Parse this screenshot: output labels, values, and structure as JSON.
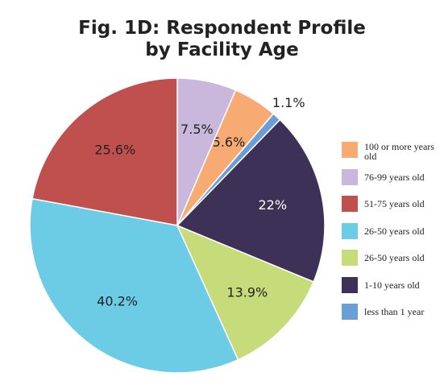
{
  "chart_data": {
    "type": "pie",
    "title": "Fig. 1D: Respondent Profile\nby Facility Age",
    "categories": [
      "100 or more years old",
      "76-99 years old",
      "51-75 years old",
      "26-50 years old",
      "26-50 years old",
      "1-10 years old",
      "less than 1 year"
    ],
    "values": [
      5.6,
      7.5,
      25.6,
      40.2,
      13.9,
      22,
      1.1
    ],
    "value_labels": [
      "5.6%",
      "7.5%",
      "25.6%",
      "40.2%",
      "13.9%",
      "22%",
      "1.1%"
    ],
    "colors": [
      "#f7ab72",
      "#c9b8dc",
      "#c0504d",
      "#6ccbe5",
      "#c6db7a",
      "#3d3157",
      "#6a9fd6"
    ]
  }
}
